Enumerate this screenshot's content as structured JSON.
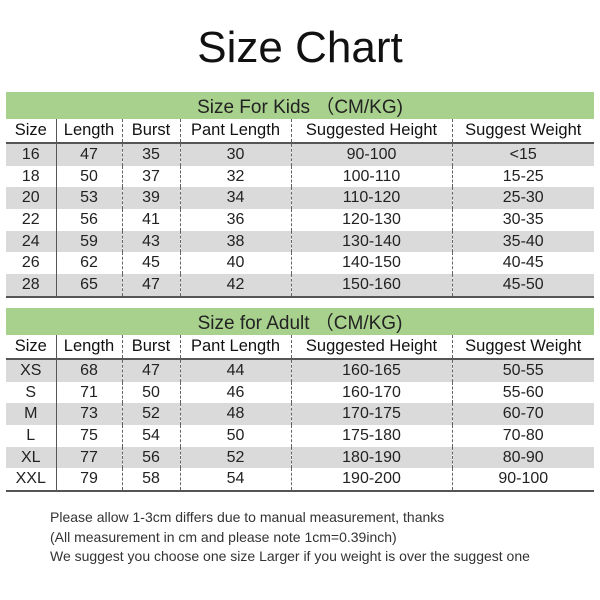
{
  "title": "Size Chart",
  "columns": [
    "Size",
    "Length",
    "Burst",
    "Pant Length",
    "Suggested Height",
    "Suggest Weight"
  ],
  "kids": {
    "caption": "Size For Kids （CM/KG)",
    "rows": [
      [
        "16",
        "47",
        "35",
        "30",
        "90-100",
        "<15"
      ],
      [
        "18",
        "50",
        "37",
        "32",
        "100-110",
        "15-25"
      ],
      [
        "20",
        "53",
        "39",
        "34",
        "110-120",
        "25-30"
      ],
      [
        "22",
        "56",
        "41",
        "36",
        "120-130",
        "30-35"
      ],
      [
        "24",
        "59",
        "43",
        "38",
        "130-140",
        "35-40"
      ],
      [
        "26",
        "62",
        "45",
        "40",
        "140-150",
        "40-45"
      ],
      [
        "28",
        "65",
        "47",
        "42",
        "150-160",
        "45-50"
      ]
    ]
  },
  "adult": {
    "caption": "Size for Adult （CM/KG)",
    "rows": [
      [
        "XS",
        "68",
        "47",
        "44",
        "160-165",
        "50-55"
      ],
      [
        "S",
        "71",
        "50",
        "46",
        "160-170",
        "55-60"
      ],
      [
        "M",
        "73",
        "52",
        "48",
        "170-175",
        "60-70"
      ],
      [
        "L",
        "75",
        "54",
        "50",
        "175-180",
        "70-80"
      ],
      [
        "XL",
        "77",
        "56",
        "52",
        "180-190",
        "80-90"
      ],
      [
        "XXL",
        "79",
        "58",
        "54",
        "190-200",
        "90-100"
      ]
    ]
  },
  "notes": [
    "Please allow 1-3cm differs due to manual measurement, thanks",
    "(All measurement in cm and please note 1cm=0.39inch)",
    "We suggest you choose one size Larger if you weight is over the suggest one"
  ],
  "colors": {
    "header_green": "#a9d18e",
    "row_gray": "#dadada"
  }
}
